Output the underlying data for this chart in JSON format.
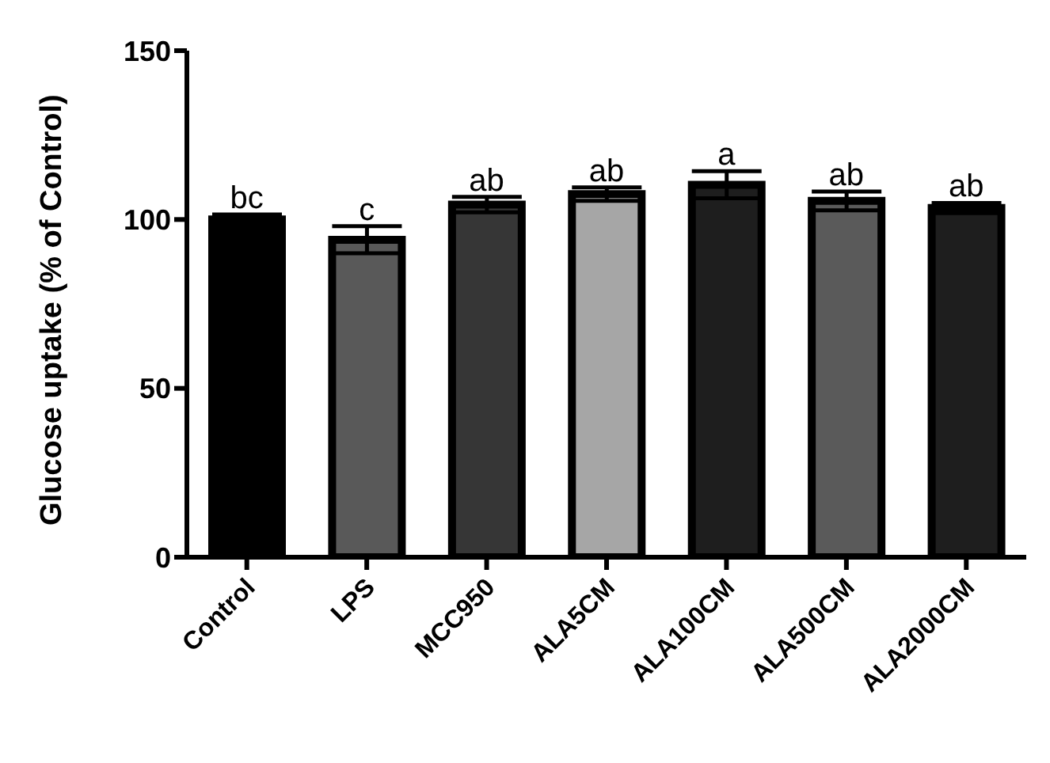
{
  "chart_data": {
    "type": "bar",
    "ylabel": "Glucose uptake (% of Control)",
    "categories": [
      "Control",
      "LPS",
      "MCC950",
      "ALA5CM",
      "ALA100CM",
      "ALA500CM",
      "ALA2000CM"
    ],
    "values": [
      100,
      94,
      104.4,
      107.5,
      110.3,
      105.5,
      103.4
    ],
    "errors": [
      1.5,
      4,
      2.3,
      2,
      4,
      2.8,
      1.5
    ],
    "colors": [
      "#000000",
      "#595959",
      "#363636",
      "#a6a6a6",
      "#1e1e1e",
      "#5a5a5a",
      "#1e1e1e"
    ],
    "ylim": [
      0,
      150
    ],
    "yticks": [
      0,
      50,
      100,
      150
    ],
    "grid": false,
    "legend": false,
    "annotations": [
      {
        "text": "bc",
        "x": "Control",
        "y": 101.5
      },
      {
        "text": "c",
        "x": "LPS",
        "y": 98
      },
      {
        "text": "ab",
        "x": "MCC950",
        "y": 106.7
      },
      {
        "text": "ab",
        "x": "ALA5CM",
        "y": 109.5
      },
      {
        "text": "a",
        "x": "ALA100CM",
        "y": 114.3
      },
      {
        "text": "ab",
        "x": "ALA500CM",
        "y": 108.3
      },
      {
        "text": "ab",
        "x": "ALA2000CM",
        "y": 104.9
      }
    ]
  }
}
